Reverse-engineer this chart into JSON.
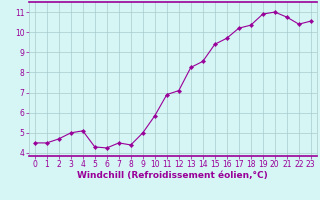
{
  "x": [
    0,
    1,
    2,
    3,
    4,
    5,
    6,
    7,
    8,
    9,
    10,
    11,
    12,
    13,
    14,
    15,
    16,
    17,
    18,
    19,
    20,
    21,
    22,
    23
  ],
  "y": [
    4.5,
    4.5,
    4.7,
    5.0,
    5.1,
    4.3,
    4.25,
    4.5,
    4.4,
    5.0,
    5.85,
    6.9,
    7.1,
    8.25,
    8.55,
    9.4,
    9.7,
    10.2,
    10.35,
    10.9,
    11.0,
    10.75,
    10.4,
    10.55
  ],
  "line_color": "#990099",
  "marker": "D",
  "marker_size": 2.2,
  "bg_color": "#d6f5f5",
  "grid_color": "#aacccc",
  "border_color": "#990099",
  "xlabel": "Windchill (Refroidissement éolien,°C)",
  "xlabel_color": "#990099",
  "xlim": [
    -0.5,
    23.5
  ],
  "ylim": [
    3.85,
    11.5
  ],
  "yticks": [
    4,
    5,
    6,
    7,
    8,
    9,
    10,
    11
  ],
  "xticks": [
    0,
    1,
    2,
    3,
    4,
    5,
    6,
    7,
    8,
    9,
    10,
    11,
    12,
    13,
    14,
    15,
    16,
    17,
    18,
    19,
    20,
    21,
    22,
    23
  ],
  "tick_color": "#990099",
  "tick_fontsize": 5.5,
  "xlabel_fontsize": 6.5
}
